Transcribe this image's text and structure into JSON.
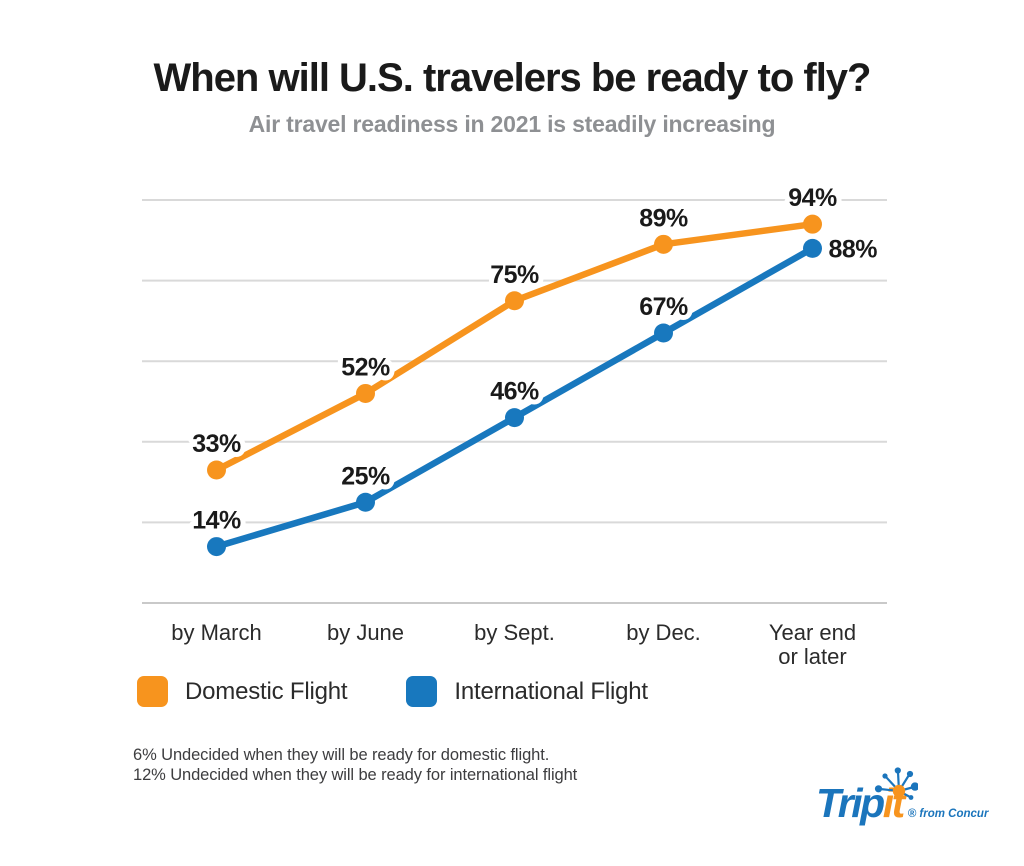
{
  "chart_data": {
    "type": "line",
    "title": "When will U.S. travelers be ready to fly?",
    "subtitle": "Air travel readiness in 2021 is steadily increasing",
    "categories": [
      "by March",
      "by June",
      "by Sept.",
      "by Dec.",
      "Year end or later"
    ],
    "tick_lines": [
      [
        "by March"
      ],
      [
        "by June"
      ],
      [
        "by Sept."
      ],
      [
        "by Dec."
      ],
      [
        "Year end",
        "or later"
      ]
    ],
    "series": [
      {
        "name": "Domestic Flight",
        "color": "#F7941E",
        "values": [
          33,
          52,
          75,
          89,
          94
        ],
        "label_positions": [
          "above",
          "above",
          "above",
          "above",
          "above"
        ]
      },
      {
        "name": "International Flight",
        "color": "#1878BE",
        "values": [
          14,
          25,
          46,
          67,
          88
        ],
        "label_positions": [
          "above",
          "above",
          "above",
          "above",
          "right"
        ]
      }
    ],
    "value_suffix": "%",
    "xlabel": "",
    "ylabel": "",
    "ylim": [
      0,
      100
    ],
    "gridlines": [
      0,
      20,
      40,
      60,
      80,
      100
    ],
    "grid": true,
    "legend_position": "bottom-left",
    "annotations": [
      "6% Undecided when they will be ready for domestic flight.",
      "12% Undecided when they will be ready for international flight"
    ]
  },
  "colors": {
    "background": "#FFFFFF",
    "title": "#1A1A1A",
    "subtitle": "#8E9093",
    "gridline": "#D9D9D9",
    "baseline": "#C9C9C9",
    "data_label": "#1A1A1A",
    "tick_label": "#2B2B2B",
    "footnote": "#3D3D3F"
  },
  "logo": {
    "trip": "Trip",
    "it": "it",
    "suffix": "® from Concur",
    "blue": "#1B75BC",
    "orange": "#F7941E"
  }
}
